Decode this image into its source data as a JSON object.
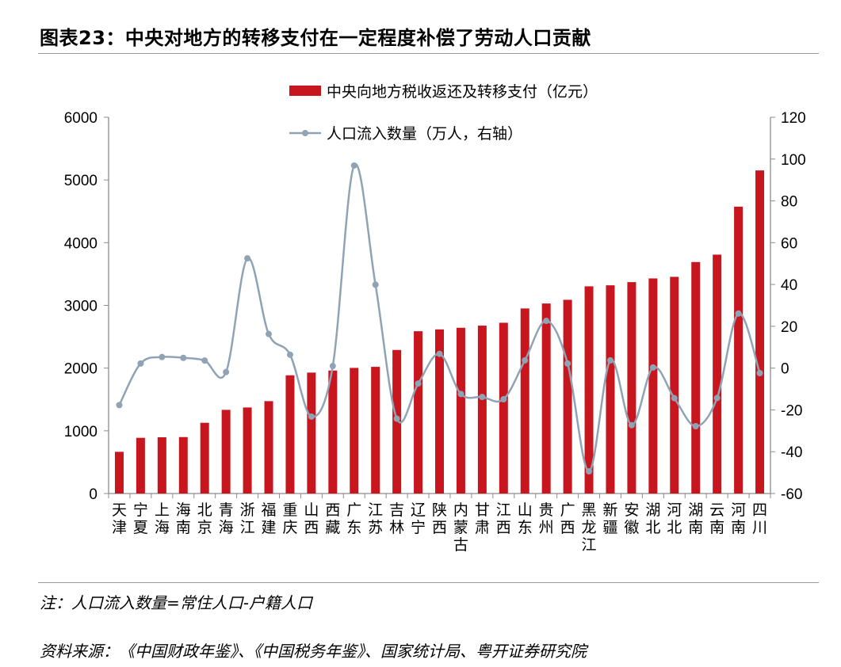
{
  "title": "图表23：中央对地方的转移支付在一定程度补偿了劳动人口贡献",
  "note": "注：人口流入数量=常住人口-户籍人口",
  "source": "资料来源：《中国财政年鉴》、《中国税务年鉴》、国家统计局、粤开证券研究院",
  "chart_data": {
    "type": "bar+line",
    "categories": [
      "天津",
      "宁夏",
      "上海",
      "海南",
      "北京",
      "青海",
      "浙江",
      "福建",
      "重庆",
      "山西",
      "西藏",
      "广东",
      "江苏",
      "吉林",
      "辽宁",
      "陕西",
      "内蒙古",
      "甘肃",
      "江西",
      "山东",
      "贵州",
      "广西",
      "黑龙江",
      "新疆",
      "安徽",
      "湖北",
      "河北",
      "湖南",
      "云南",
      "河南",
      "四川"
    ],
    "series": [
      {
        "name": "中央向地方税收返还及转移支付（亿元）",
        "type": "bar",
        "axis": "left",
        "color": "#C8161E",
        "values": [
          665,
          888,
          897,
          900,
          1128,
          1334,
          1372,
          1473,
          1885,
          1928,
          1961,
          2003,
          2020,
          2289,
          2588,
          2617,
          2643,
          2677,
          2723,
          2951,
          3030,
          3089,
          3304,
          3320,
          3371,
          3430,
          3455,
          3691,
          3809,
          4574,
          5152
        ]
      },
      {
        "name": "人口流入数量（万人，右轴）",
        "type": "line",
        "axis": "right",
        "smooth": true,
        "color": "#8FA3B5",
        "values": [
          -17.7,
          2.2,
          5.3,
          4.9,
          3.6,
          -1.9,
          52.5,
          16.3,
          6.4,
          -23.2,
          1.0,
          96.9,
          39.9,
          -24.2,
          -7.4,
          6.8,
          -12.4,
          -13.8,
          -14.9,
          3.7,
          22.6,
          2.2,
          -49.4,
          3.7,
          -27.3,
          0.3,
          -14.4,
          -27.8,
          -14.3,
          26.1,
          -2.4
        ]
      }
    ],
    "y_left": {
      "range": [
        0,
        6000
      ],
      "ticks": [
        "0",
        "1000",
        "2000",
        "3000",
        "4000",
        "5000",
        "6000"
      ]
    },
    "y_right": {
      "range": [
        -60,
        120
      ],
      "ticks": [
        "-60",
        "-40",
        "-20",
        "0",
        "20",
        "40",
        "60",
        "80",
        "100",
        "120"
      ]
    },
    "legend_placement": "top-center",
    "grid": false
  }
}
